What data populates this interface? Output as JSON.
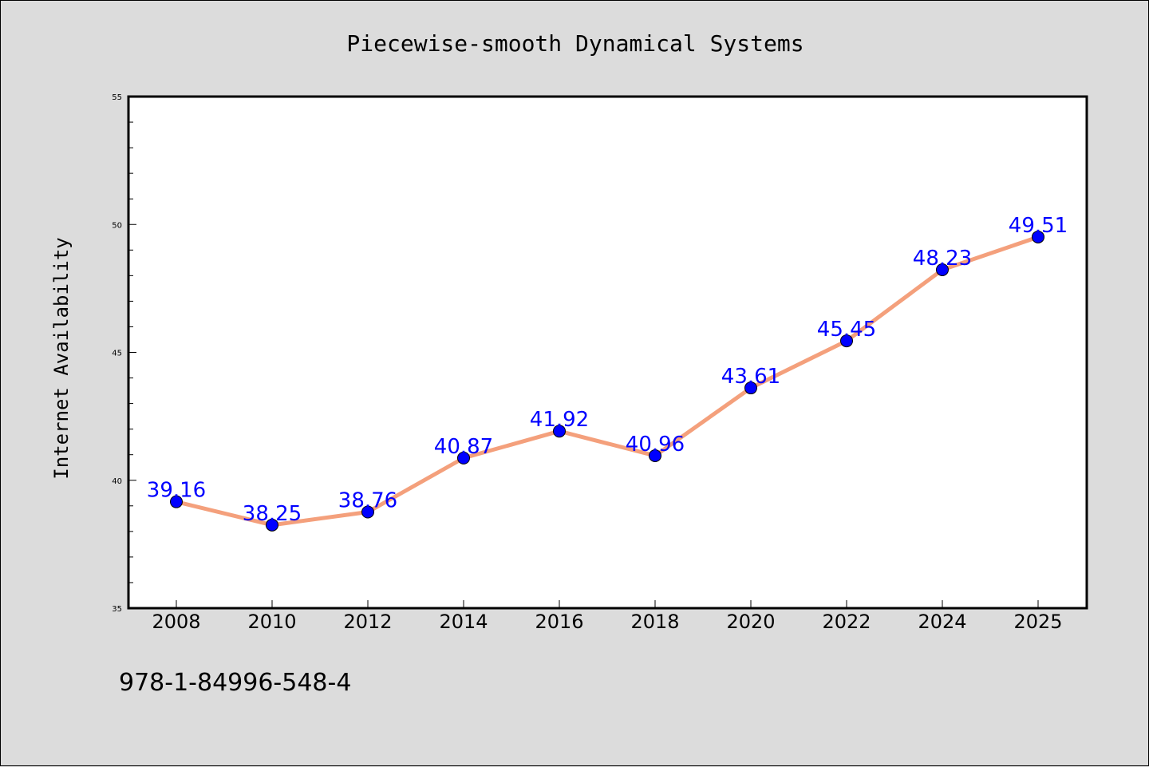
{
  "chart_data": {
    "type": "line",
    "title": "Piecewise-smooth Dynamical Systems",
    "xlabel": "",
    "ylabel": "Internet Availability",
    "categories": [
      "2008",
      "2010",
      "2012",
      "2014",
      "2016",
      "2018",
      "2020",
      "2022",
      "2024",
      "2025"
    ],
    "series": [
      {
        "values": [
          39.16,
          38.25,
          38.76,
          40.87,
          41.92,
          40.96,
          43.61,
          45.45,
          48.23,
          49.51
        ],
        "labels": [
          "39.16",
          "38.25",
          "38.76",
          "40.87",
          "41.92",
          "40.96",
          "43.61",
          "45.45",
          "48.23",
          "49.51"
        ]
      }
    ],
    "ylim": [
      35,
      55
    ],
    "yticks": [
      "35",
      "40",
      "45",
      "50",
      "55"
    ],
    "grid": false,
    "legend": "none"
  },
  "footer": {
    "isbn": "978-1-84996-548-4"
  },
  "colors": {
    "background": "#dcdcdc",
    "plot_background": "#ffffff",
    "line": "#f4a07c",
    "marker": "#0000ff",
    "data_label": "#0000ff"
  }
}
